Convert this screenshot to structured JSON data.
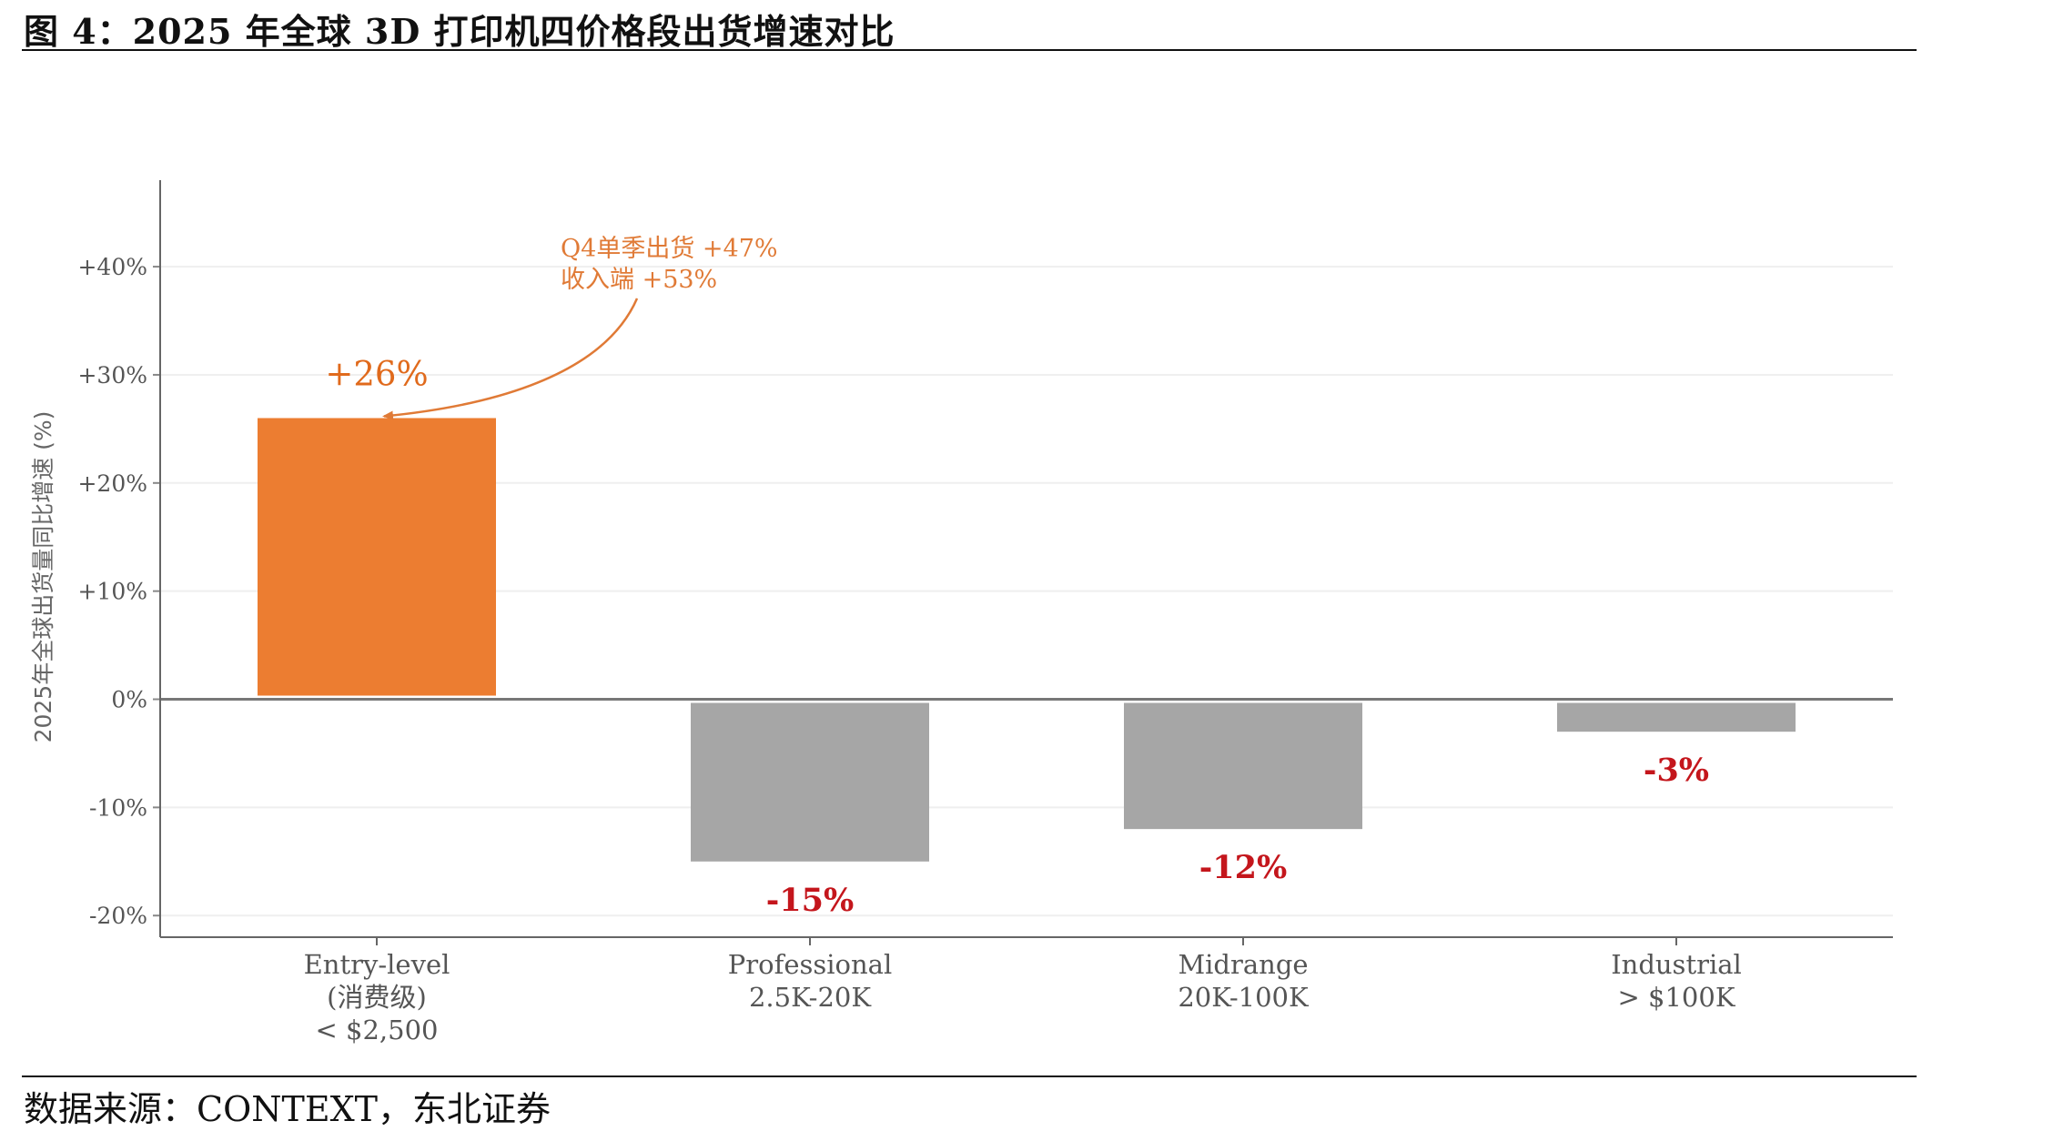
{
  "figure": {
    "title": "图 4：2025 年全球 3D 打印机四价格段出货增速对比",
    "source": "数据来源：CONTEXT，东北证券"
  },
  "chart_data": {
    "type": "bar",
    "ylabel": "2025年全球出货量同比增速 (%)",
    "ylim": [
      -22,
      48
    ],
    "yticks": [
      {
        "value": 40,
        "label": "+40%"
      },
      {
        "value": 30,
        "label": "+30%"
      },
      {
        "value": 20,
        "label": "+20%"
      },
      {
        "value": 10,
        "label": "+10%"
      },
      {
        "value": 0,
        "label": "0%"
      },
      {
        "value": -10,
        "label": "-10%"
      },
      {
        "value": -20,
        "label": "-20%"
      }
    ],
    "grid": true,
    "categories": [
      {
        "lines": [
          "Entry-level",
          "(消费级)",
          "< $2,500"
        ]
      },
      {
        "lines": [
          "Professional",
          "2.5K-20K"
        ]
      },
      {
        "lines": [
          "Midrange",
          "20K-100K"
        ]
      },
      {
        "lines": [
          "Industrial",
          "> $100K"
        ]
      }
    ],
    "values": [
      26,
      -15,
      -12,
      -3
    ],
    "value_labels": [
      "+26%",
      "-15%",
      "-12%",
      "-3%"
    ],
    "colors": [
      "#ec7d31",
      "#a6a6a6",
      "#a6a6a6",
      "#a6a6a6"
    ],
    "label_colors": {
      "positive": "#e06a1c",
      "negative": "#c4161c"
    },
    "annotation": {
      "category_index": 0,
      "lines": [
        "Q4单季出货 +47%",
        "收入端 +53%"
      ],
      "color": "#e07a36"
    }
  }
}
